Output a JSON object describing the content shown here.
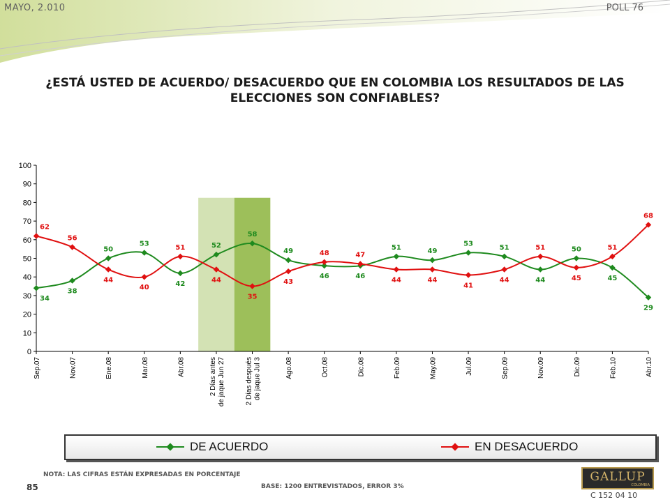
{
  "header": {
    "date": "MAYO, 2.010",
    "poll": "POLL 76"
  },
  "title_line1": "¿ESTÁ USTED DE ACUERDO/ DESACUERDO QUE EN COLOMBIA LOS RESULTADOS DE LAS",
  "title_line2": "ELECCIONES SON CONFIABLES?",
  "chart_data": {
    "type": "line",
    "title": "¿ESTÁ USTED DE ACUERDO/ DESACUERDO QUE EN COLOMBIA LOS RESULTADOS DE LAS ELECCIONES SON CONFIABLES?",
    "categories": [
      "Sep.07",
      "Nov.07",
      "Ene.08",
      "Mar.08",
      "Abr.08",
      "2 Días antes de jaque Jun 27",
      "2 Días después de jaque Jul 3",
      "Ago.08",
      "Oct.08",
      "Dic.08",
      "Feb.09",
      "May.09",
      "Jul.09",
      "Sep.09",
      "Nov.09",
      "Dic.09",
      "Feb.10",
      "Abr.10"
    ],
    "ylim": [
      0,
      100
    ],
    "yticks": [
      0,
      10,
      20,
      30,
      40,
      50,
      60,
      70,
      80,
      90,
      100
    ],
    "grid": false,
    "legend": "bottom",
    "highlight_bands": [
      {
        "category_index": 5,
        "color": "#d3e2b4"
      },
      {
        "category_index": 6,
        "color": "#9dbf5a"
      }
    ],
    "series": [
      {
        "name": "DE ACUERDO",
        "color": "#1e8a1e",
        "values": [
          34,
          38,
          50,
          53,
          42,
          52,
          58,
          49,
          46,
          46,
          51,
          49,
          53,
          51,
          44,
          50,
          45,
          29
        ]
      },
      {
        "name": "EN DESACUERDO",
        "color": "#e01010",
        "values": [
          62,
          56,
          44,
          40,
          51,
          44,
          35,
          43,
          48,
          47,
          44,
          44,
          41,
          44,
          51,
          45,
          51,
          68
        ]
      }
    ]
  },
  "legend": {
    "acuerdo": "DE ACUERDO",
    "desacuerdo": "EN DESACUERDO"
  },
  "footer": {
    "nota": "NOTA: LAS CIFRAS ESTÁN EXPRESADAS EN PORCENTAJE",
    "base": "BASE: 1200 ENTREVISTADOS, ERROR 3%",
    "page": "85",
    "code": "C 152 04 10",
    "logo": "GALLUP",
    "logo_sub": "COLOMBIA"
  }
}
